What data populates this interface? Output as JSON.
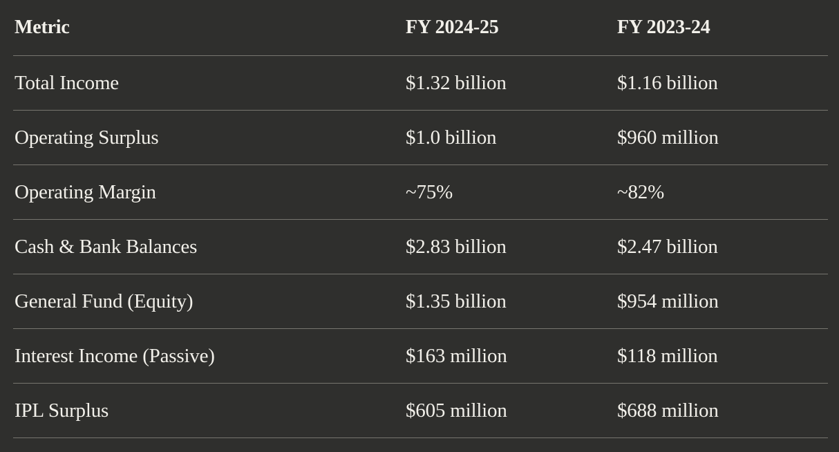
{
  "table": {
    "headers": [
      "Metric",
      "FY 2024-25",
      "FY 2023-24"
    ],
    "rows": [
      [
        "Total Income",
        "$1.32 billion",
        "$1.16 billion"
      ],
      [
        "Operating Surplus",
        "$1.0 billion",
        "$960 million"
      ],
      [
        "Operating Margin",
        "~75%",
        "~82%"
      ],
      [
        "Cash & Bank Balances",
        "$2.83 billion",
        "$2.47 billion"
      ],
      [
        "General Fund (Equity)",
        "$1.35 billion",
        "$954 million"
      ],
      [
        "Interest Income (Passive)",
        "$163 million",
        "$118 million"
      ],
      [
        "IPL Surplus",
        "$605 million",
        "$688 million"
      ]
    ]
  },
  "colors": {
    "background": "#2f2f2d",
    "text": "#f2f0ea",
    "divider": "#77766f"
  }
}
